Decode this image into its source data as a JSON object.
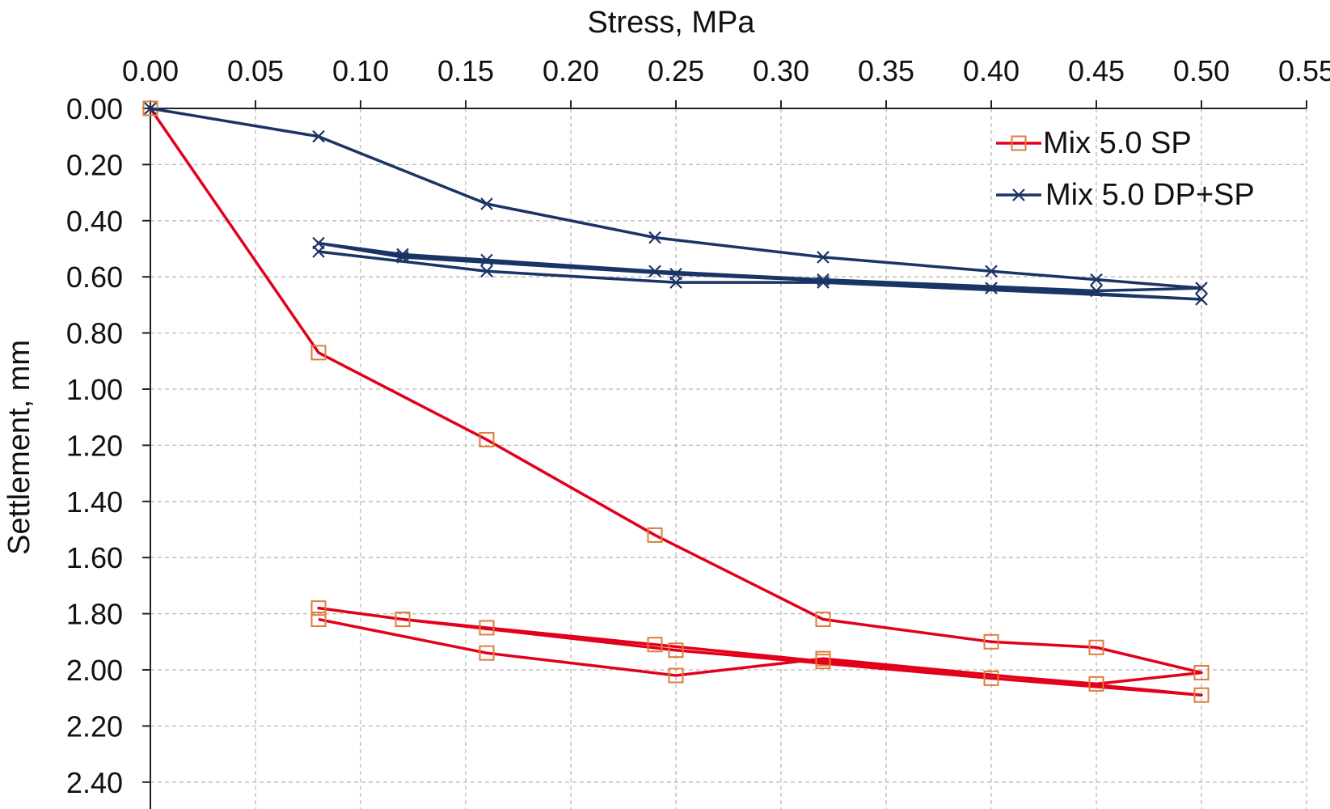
{
  "chart_data": {
    "type": "line",
    "xlabel": "Stress, MPa",
    "ylabel": "Settlement, mm",
    "xlim": [
      0,
      0.55
    ],
    "ylim": [
      0,
      2.4
    ],
    "y_inverted": true,
    "x_axis_position": "top",
    "grid": true,
    "legend_position": "top-right",
    "x_ticks": [
      "0.00",
      "0.05",
      "0.10",
      "0.15",
      "0.20",
      "0.25",
      "0.30",
      "0.35",
      "0.40",
      "0.45",
      "0.50",
      "0.55"
    ],
    "y_ticks": [
      "0.00",
      "0.20",
      "0.40",
      "0.60",
      "0.80",
      "1.00",
      "1.20",
      "1.40",
      "1.60",
      "1.80",
      "2.00",
      "2.20",
      "2.40"
    ],
    "series": [
      {
        "name": "Mix 5.0 SP",
        "color": "#e2001a",
        "marker_color": "#e07b3a",
        "marker": "square",
        "x": [
          0,
          0.08,
          0.16,
          0.24,
          0.32,
          0.4,
          0.45,
          0.5,
          0.45,
          0.32,
          0.24,
          0.16,
          0.12,
          0.08,
          0.12,
          0.25,
          0.4,
          0.5,
          0.32,
          0.25,
          0.16,
          0.08
        ],
        "y": [
          0,
          0.87,
          1.18,
          1.52,
          1.82,
          1.9,
          1.92,
          2.01,
          2.05,
          1.97,
          1.91,
          1.85,
          1.82,
          1.78,
          1.82,
          1.93,
          2.03,
          2.09,
          1.96,
          2.02,
          1.94,
          1.82
        ]
      },
      {
        "name": "Mix 5.0 DP+SP",
        "color": "#1a3466",
        "marker_color": "#1a3466",
        "marker": "x",
        "x": [
          0,
          0.08,
          0.16,
          0.24,
          0.32,
          0.4,
          0.45,
          0.5,
          0.45,
          0.32,
          0.24,
          0.16,
          0.12,
          0.08,
          0.12,
          0.25,
          0.4,
          0.5,
          0.32,
          0.25,
          0.16,
          0.08
        ],
        "y": [
          0,
          0.1,
          0.34,
          0.46,
          0.53,
          0.58,
          0.61,
          0.64,
          0.65,
          0.61,
          0.58,
          0.54,
          0.52,
          0.48,
          0.53,
          0.59,
          0.64,
          0.68,
          0.62,
          0.62,
          0.58,
          0.51
        ]
      }
    ]
  }
}
